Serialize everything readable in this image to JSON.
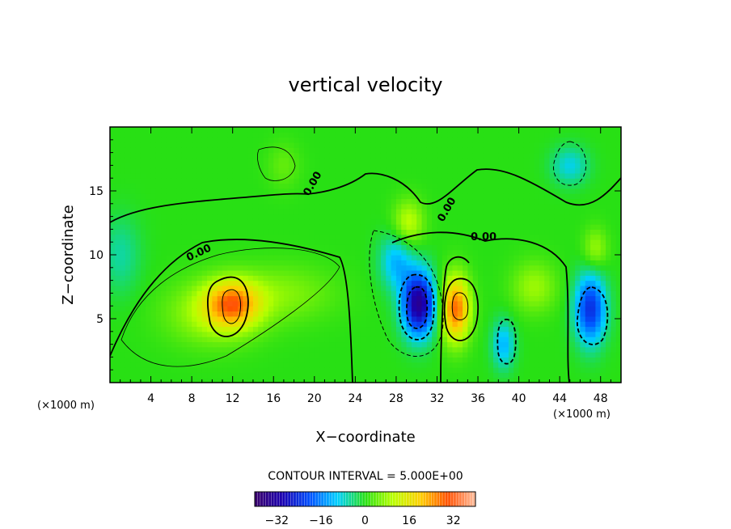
{
  "chart_data": {
    "type": "heatmap",
    "title": "vertical velocity",
    "xlabel": "X−coordinate",
    "ylabel": "Z−coordinate",
    "x_unit_left": "(×1000 m)",
    "x_unit_right": "(×1000 m)",
    "xlim": [
      0,
      50
    ],
    "ylim": [
      0,
      20
    ],
    "x_ticks": [
      4,
      8,
      12,
      16,
      20,
      24,
      28,
      32,
      36,
      40,
      44,
      48
    ],
    "x_tick_labels": [
      "4",
      "8",
      "12",
      "16",
      "20",
      "24",
      "28",
      "32",
      "36",
      "40",
      "44",
      "48"
    ],
    "y_ticks": [
      5,
      10,
      15
    ],
    "y_tick_labels": [
      "5",
      "10",
      "15"
    ],
    "contour_interval_text": "CONTOUR INTERVAL = 5.000E+00",
    "contour_label": "0.00",
    "colorbar": {
      "range": [
        -40,
        40
      ],
      "ticks": [
        -32,
        -16,
        0,
        16,
        32
      ],
      "tick_labels": [
        "−32",
        "−16",
        "0",
        "16",
        "32"
      ]
    },
    "features": [
      {
        "x": 12,
        "z": 6.2,
        "value": 22,
        "sx": 2.6,
        "sz": 1.8
      },
      {
        "x": 10,
        "z": 5.5,
        "value": 9,
        "sx": 4.5,
        "sz": 2.5
      },
      {
        "x": 17,
        "z": 7,
        "value": 6,
        "sx": 5,
        "sz": 2.2
      },
      {
        "x": 30.2,
        "z": 6.2,
        "value": -34,
        "sx": 1.6,
        "sz": 2.5
      },
      {
        "x": 28,
        "z": 9.5,
        "value": -12,
        "sx": 1.6,
        "sz": 2.2
      },
      {
        "x": 33.8,
        "z": 5.8,
        "value": 28,
        "sx": 1.4,
        "sz": 2.5
      },
      {
        "x": 29.2,
        "z": 12.5,
        "value": 11,
        "sx": 1.5,
        "sz": 1.8
      },
      {
        "x": 38.5,
        "z": 3,
        "value": -12,
        "sx": 1.1,
        "sz": 1.9
      },
      {
        "x": 41.5,
        "z": 7.5,
        "value": 8,
        "sx": 2.2,
        "sz": 2
      },
      {
        "x": 47,
        "z": 5.8,
        "value": -24,
        "sx": 1.5,
        "sz": 2.7
      },
      {
        "x": 47.5,
        "z": 10.5,
        "value": 8,
        "sx": 1.2,
        "sz": 1.6
      },
      {
        "x": 45,
        "z": 17,
        "value": -9,
        "sx": 1.8,
        "sz": 1.5
      },
      {
        "x": 1,
        "z": 10,
        "value": -6,
        "sx": 2,
        "sz": 3
      },
      {
        "x": 17,
        "z": 17,
        "value": 4,
        "sx": 1.6,
        "sz": 1.8
      }
    ]
  }
}
